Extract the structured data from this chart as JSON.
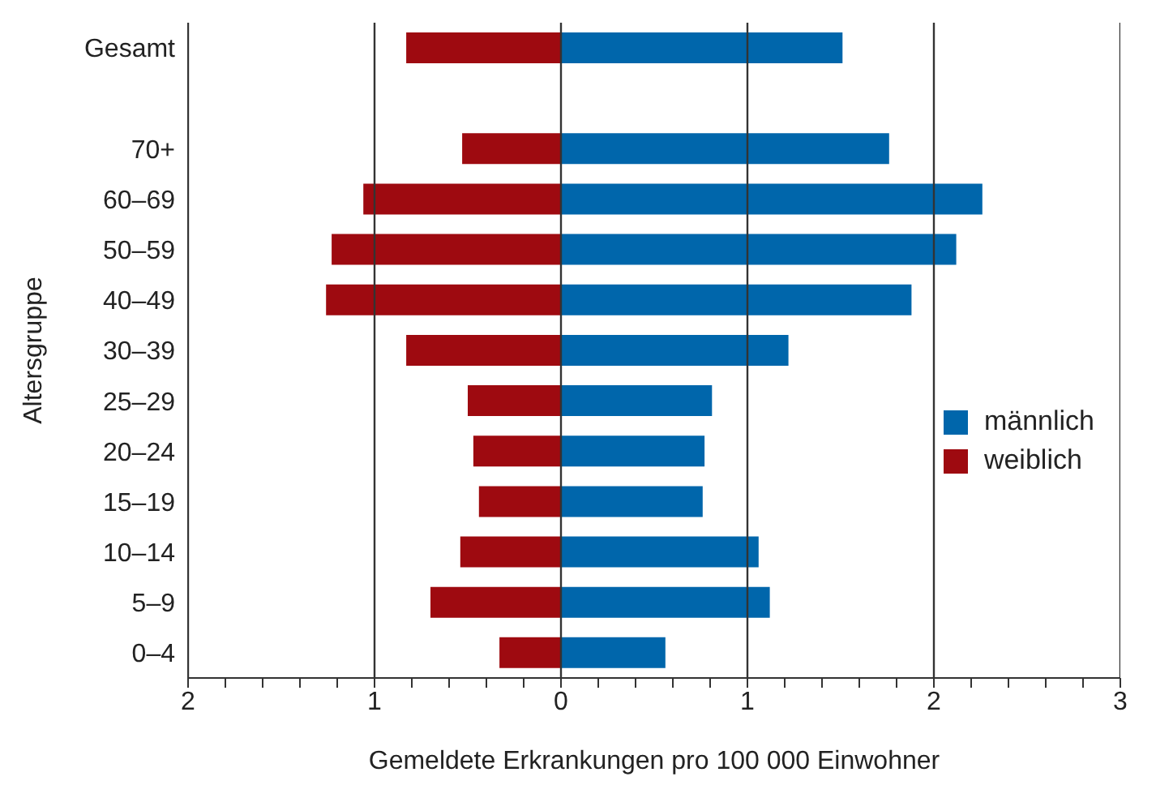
{
  "chart_data": {
    "type": "bar",
    "orientation": "horizontal",
    "stacked": true,
    "xlabel": "Gemeldete Erkrankungen pro 100 000 Einwohner",
    "ylabel": "Altersgruppe",
    "categories": [
      "Gesamt",
      null,
      "70+",
      "60–69",
      "50–59",
      "40–49",
      "30–39",
      "25–29",
      "20–24",
      "15–19",
      "10–14",
      "5–9",
      "0–4"
    ],
    "series": [
      {
        "name": "männlich",
        "color": "#0066ab",
        "values": [
          1.51,
          null,
          1.76,
          2.26,
          2.12,
          1.88,
          1.22,
          0.81,
          0.77,
          0.76,
          1.06,
          1.12,
          0.56
        ]
      },
      {
        "name": "weiblich",
        "color": "#9e0a10",
        "values": [
          -0.83,
          null,
          -0.53,
          -1.06,
          -1.23,
          -1.26,
          -0.83,
          -0.5,
          -0.47,
          -0.44,
          -0.54,
          -0.7,
          -0.33
        ]
      }
    ],
    "xlim": [
      -2,
      3
    ],
    "xticks": [
      {
        "value": -2,
        "label": "2"
      },
      {
        "value": -1.8,
        "label": null
      },
      {
        "value": -1.6,
        "label": null
      },
      {
        "value": -1.4,
        "label": null
      },
      {
        "value": -1.2,
        "label": null
      },
      {
        "value": -1,
        "label": "1"
      },
      {
        "value": -0.8,
        "label": null
      },
      {
        "value": -0.6,
        "label": null
      },
      {
        "value": -0.4,
        "label": null
      },
      {
        "value": -0.2,
        "label": null
      },
      0,
      {
        "value": 0.2,
        "label": null
      },
      {
        "value": 0.4,
        "label": null
      },
      {
        "value": 0.6,
        "label": null
      },
      {
        "value": 0.8,
        "label": null
      },
      1,
      {
        "value": 1.2,
        "label": null
      },
      {
        "value": 1.4,
        "label": null
      },
      {
        "value": 1.6,
        "label": null
      },
      {
        "value": 1.8,
        "label": null
      },
      2,
      {
        "value": 2.2,
        "label": null
      },
      {
        "value": 2.4,
        "label": null
      },
      {
        "value": 2.6,
        "label": null
      },
      {
        "value": 2.8,
        "label": null
      },
      3
    ],
    "grid": "x",
    "legend": "right"
  }
}
